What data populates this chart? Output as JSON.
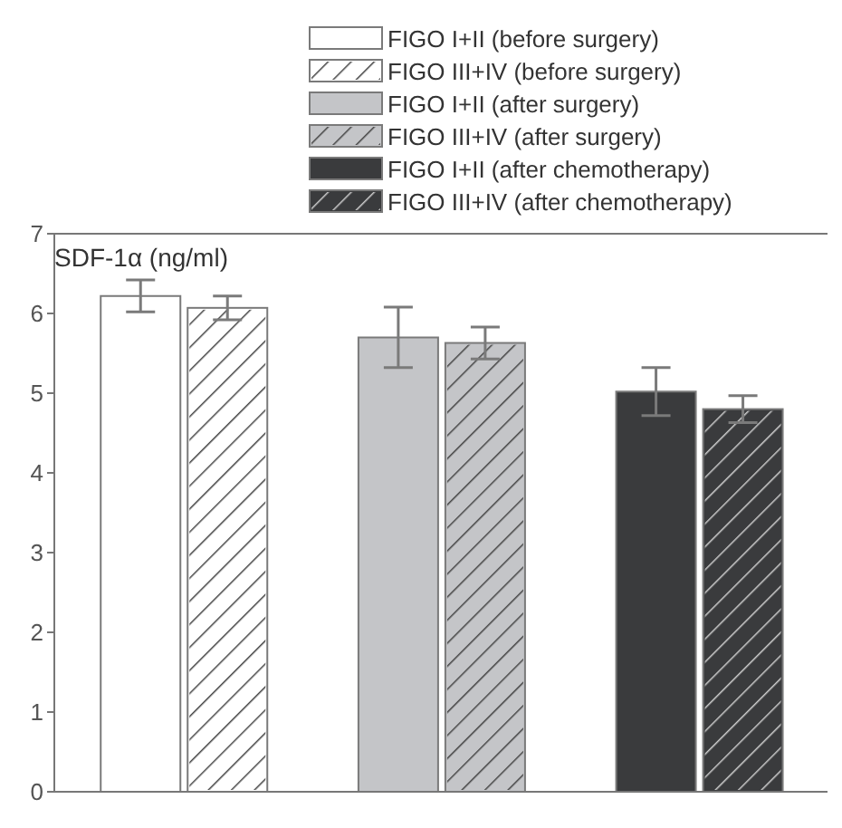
{
  "chart_data": {
    "type": "bar",
    "ylabel": "SDF-1α (ng/ml)",
    "categories": [
      null,
      null,
      null
    ],
    "ylim": [
      0,
      7
    ],
    "yticks": [
      0,
      1,
      2,
      3,
      4,
      5,
      6,
      7
    ],
    "tick_labels": "y",
    "legend": "top right",
    "grid": false,
    "series": [
      {
        "name": "FIGO I+II (before surgery)",
        "color": "#ffffff",
        "values": [
          6.22,
          null,
          null
        ],
        "errors": [
          0.2,
          null,
          null
        ]
      },
      {
        "name": "FIGO III+IV (before surgery)",
        "color": "#ffffff",
        "values": [
          6.07,
          null,
          null
        ],
        "errors": [
          0.15,
          null,
          null
        ]
      },
      {
        "name": "FIGO I+II (after surgery)",
        "color": "#c4c5c8",
        "values": [
          null,
          5.7,
          null
        ],
        "errors": [
          null,
          0.38,
          null
        ]
      },
      {
        "name": "FIGO III+IV (after surgery)",
        "color": "#c4c5c8",
        "values": [
          null,
          5.63,
          null
        ],
        "errors": [
          null,
          0.2,
          null
        ]
      },
      {
        "name": "FIGO I+II (after chemotherapy)",
        "color": "#3a3b3d",
        "values": [
          null,
          null,
          5.02
        ],
        "errors": [
          null,
          null,
          0.3
        ]
      },
      {
        "name": "FIGO III+IV (after chemotherapy)",
        "color": "#3a3b3d",
        "values": [
          null,
          null,
          4.8
        ],
        "errors": [
          null,
          null,
          0.17
        ]
      }
    ]
  }
}
